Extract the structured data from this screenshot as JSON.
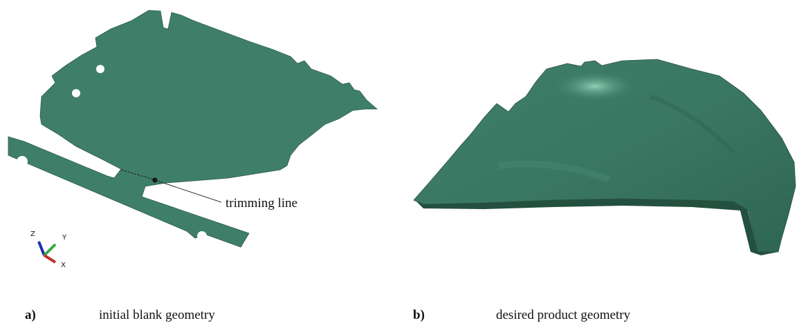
{
  "panels": [
    {
      "tag": "a)",
      "caption": "initial blank geometry",
      "annotation": "trimming line",
      "axes": [
        "Z",
        "Y",
        "X"
      ]
    },
    {
      "tag": "b)",
      "caption": "desired product geometry"
    }
  ]
}
